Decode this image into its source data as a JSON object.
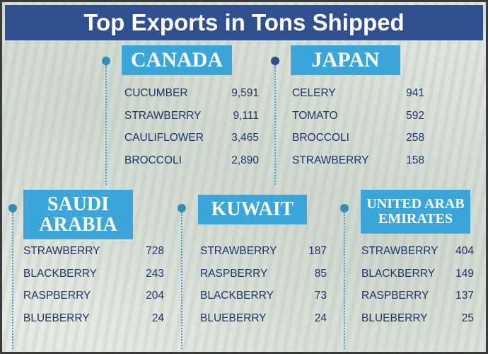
{
  "title": "Top Exports in Tons Shipped",
  "sections": [
    {
      "country": "CANADA",
      "items": [
        {
          "name": "CUCUMBER",
          "value": "9,591"
        },
        {
          "name": "STRAWBERRY",
          "value": "9,111"
        },
        {
          "name": "CAULIFLOWER",
          "value": "3,465"
        },
        {
          "name": "BROCCOLI",
          "value": "2,890"
        }
      ]
    },
    {
      "country": "JAPAN",
      "items": [
        {
          "name": "CELERY",
          "value": "941"
        },
        {
          "name": "TOMATO",
          "value": "592"
        },
        {
          "name": "BROCCOLI",
          "value": "258"
        },
        {
          "name": "STRAWBERRY",
          "value": "158"
        }
      ]
    },
    {
      "country": "SAUDI ARABIA",
      "items": [
        {
          "name": "STRAWBERRY",
          "value": "728"
        },
        {
          "name": "BLACKBERRY",
          "value": "243"
        },
        {
          "name": "RASPBERRY",
          "value": "204"
        },
        {
          "name": "BLUEBERRY",
          "value": "24"
        }
      ]
    },
    {
      "country": "KUWAIT",
      "items": [
        {
          "name": "STRAWBERRY",
          "value": "187"
        },
        {
          "name": "RASPBERRY",
          "value": "85"
        },
        {
          "name": "BLACKBERRY",
          "value": "73"
        },
        {
          "name": "BLUEBERRY",
          "value": "24"
        }
      ]
    },
    {
      "country": "UNITED ARAB EMIRATES",
      "items": [
        {
          "name": "STRAWBERRY",
          "value": "404"
        },
        {
          "name": "BLACKBERRY",
          "value": "149"
        },
        {
          "name": "RASPBERRY",
          "value": "137"
        },
        {
          "name": "BLUEBERRY",
          "value": "25"
        }
      ]
    }
  ]
}
